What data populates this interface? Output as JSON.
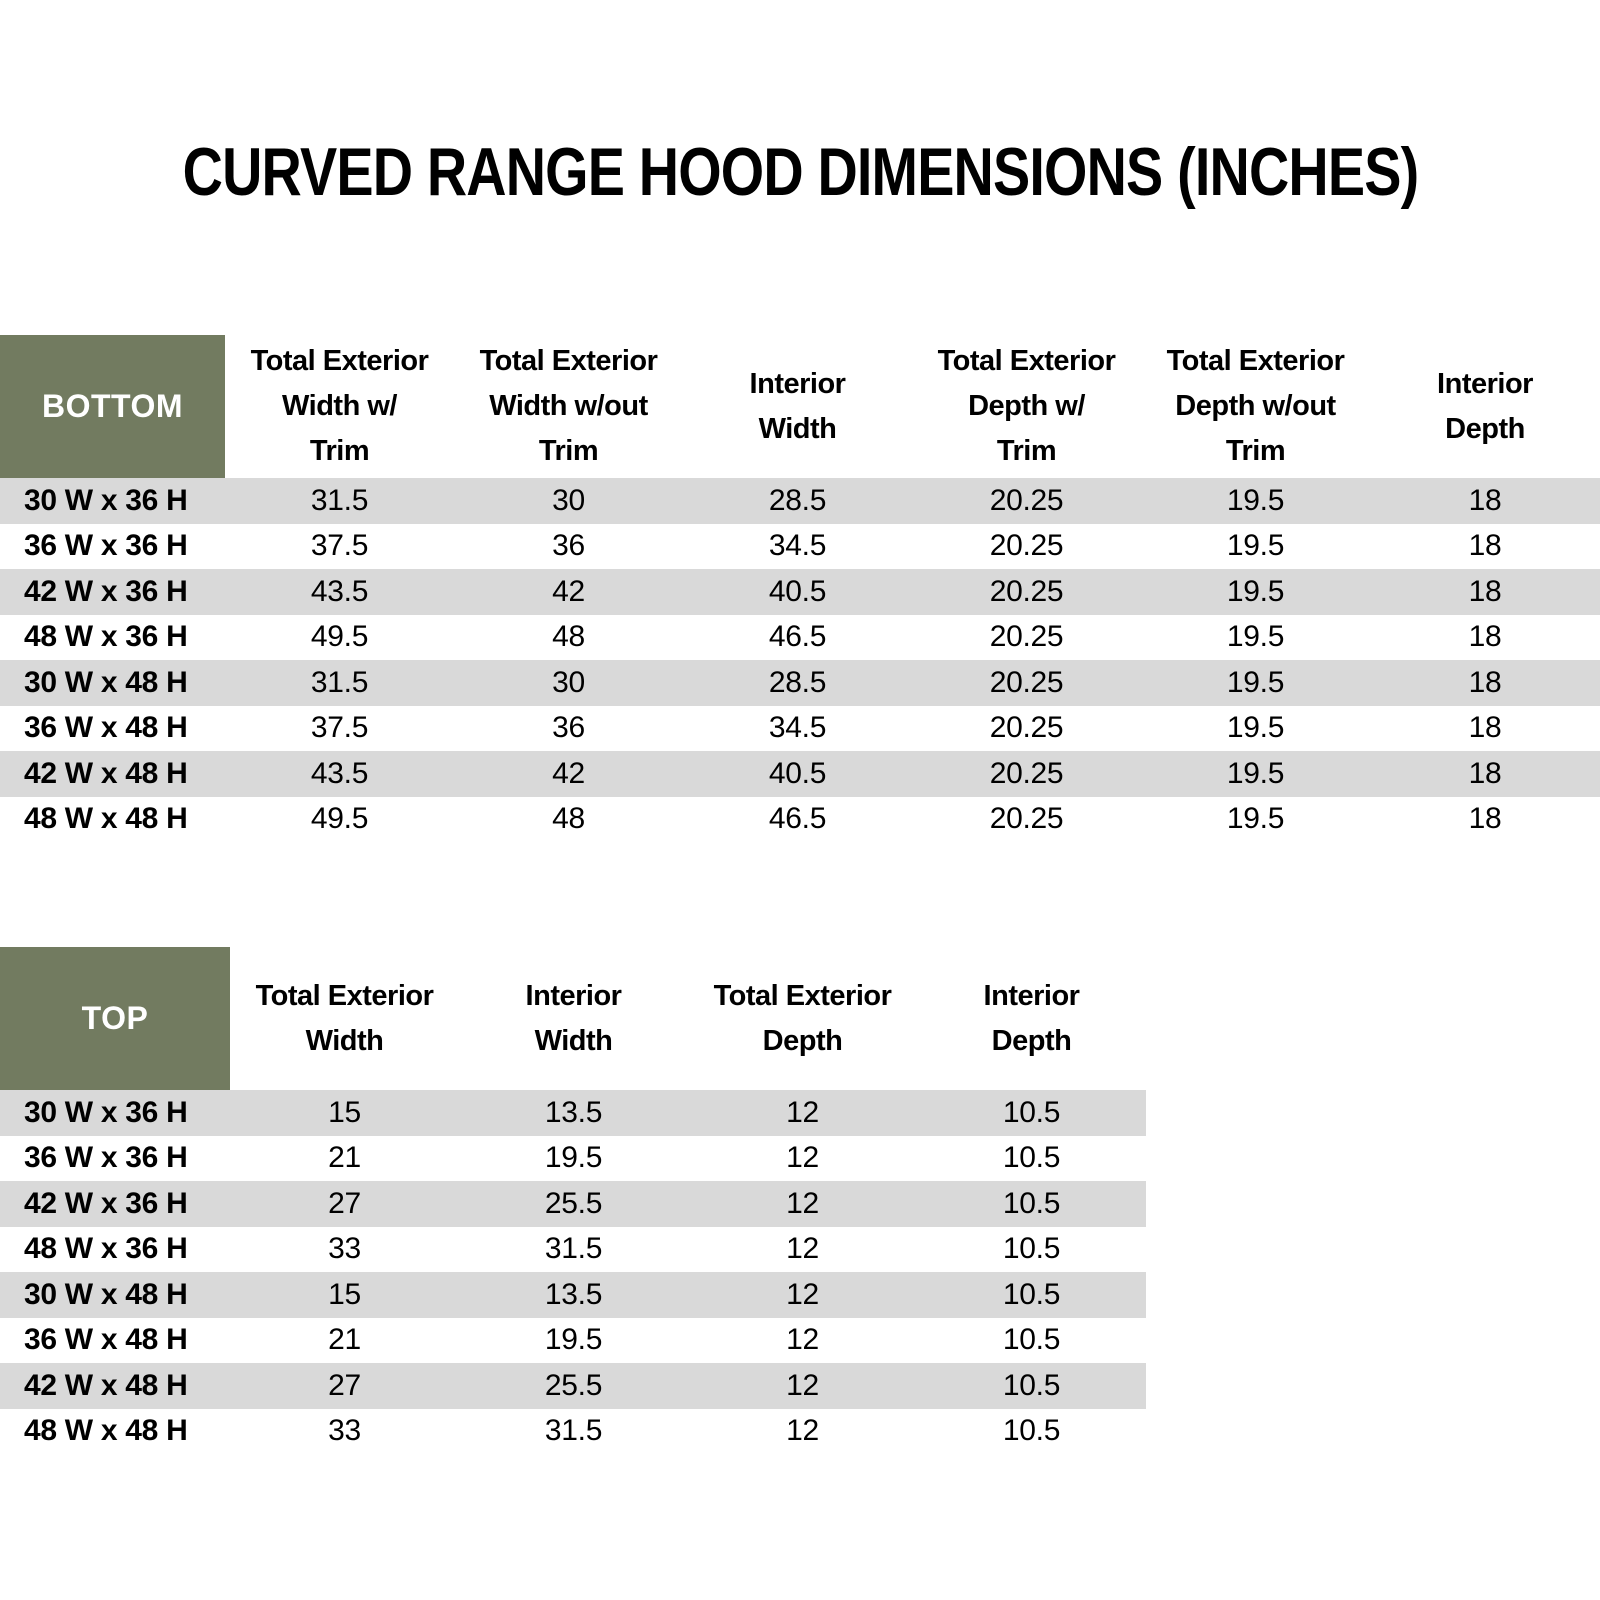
{
  "title": "CURVED RANGE HOOD DIMENSIONS (INCHES)",
  "colors": {
    "background": "#FFFFFF",
    "header_green": "#727B60",
    "corner_text": "#FFFFFF",
    "stripe_gray": "#D9D9D9",
    "body_text": "#000000"
  },
  "bottom_table": {
    "corner_label": "BOTTOM",
    "columns": [
      "Total Exterior\nWidth w/\nTrim",
      "Total Exterior\nWidth w/out\nTrim",
      "Interior\nWidth",
      "Total Exterior\nDepth w/\nTrim",
      "Total Exterior\nDepth w/out\nTrim",
      "Interior\nDepth"
    ],
    "rows": [
      {
        "label": "30 W x 36 H",
        "values": [
          "31.5",
          "30",
          "28.5",
          "20.25",
          "19.5",
          "18"
        ]
      },
      {
        "label": "36 W x 36 H",
        "values": [
          "37.5",
          "36",
          "34.5",
          "20.25",
          "19.5",
          "18"
        ]
      },
      {
        "label": "42 W x 36 H",
        "values": [
          "43.5",
          "42",
          "40.5",
          "20.25",
          "19.5",
          "18"
        ]
      },
      {
        "label": "48 W x 36 H",
        "values": [
          "49.5",
          "48",
          "46.5",
          "20.25",
          "19.5",
          "18"
        ]
      },
      {
        "label": "30 W x 48 H",
        "values": [
          "31.5",
          "30",
          "28.5",
          "20.25",
          "19.5",
          "18"
        ]
      },
      {
        "label": "36 W x 48 H",
        "values": [
          "37.5",
          "36",
          "34.5",
          "20.25",
          "19.5",
          "18"
        ]
      },
      {
        "label": "42 W x 48 H",
        "values": [
          "43.5",
          "42",
          "40.5",
          "20.25",
          "19.5",
          "18"
        ]
      },
      {
        "label": "48 W x 48 H",
        "values": [
          "49.5",
          "48",
          "46.5",
          "20.25",
          "19.5",
          "18"
        ]
      }
    ]
  },
  "top_table": {
    "corner_label": "TOP",
    "columns": [
      "Total Exterior\nWidth",
      "Interior\nWidth",
      "Total Exterior\nDepth",
      "Interior\nDepth"
    ],
    "rows": [
      {
        "label": "30 W x 36 H",
        "values": [
          "15",
          "13.5",
          "12",
          "10.5"
        ]
      },
      {
        "label": "36 W x 36 H",
        "values": [
          "21",
          "19.5",
          "12",
          "10.5"
        ]
      },
      {
        "label": "42 W x 36 H",
        "values": [
          "27",
          "25.5",
          "12",
          "10.5"
        ]
      },
      {
        "label": "48 W x 36 H",
        "values": [
          "33",
          "31.5",
          "12",
          "10.5"
        ]
      },
      {
        "label": "30 W x 48 H",
        "values": [
          "15",
          "13.5",
          "12",
          "10.5"
        ]
      },
      {
        "label": "36 W x 48 H",
        "values": [
          "21",
          "19.5",
          "12",
          "10.5"
        ]
      },
      {
        "label": "42 W x 48 H",
        "values": [
          "27",
          "25.5",
          "12",
          "10.5"
        ]
      },
      {
        "label": "48 W x 48 H",
        "values": [
          "33",
          "31.5",
          "12",
          "10.5"
        ]
      }
    ]
  }
}
